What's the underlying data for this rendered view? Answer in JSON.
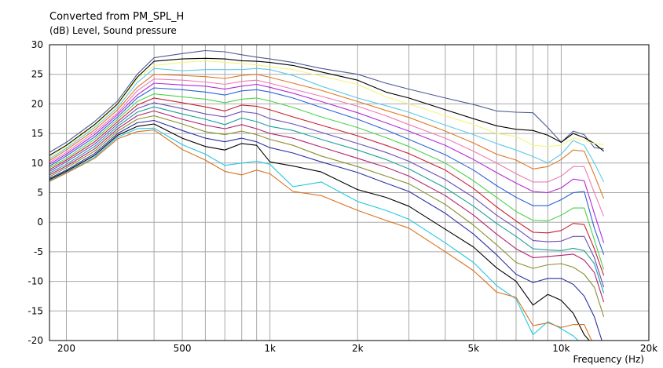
{
  "chart_data": {
    "type": "line",
    "title": "Converted from PM_SPL_H",
    "ylabel": "(dB)  Level, Sound pressure",
    "xlabel": "Frequency  (Hz)",
    "x_scale": "log",
    "xlim": [
      175,
      20000
    ],
    "ylim": [
      -20,
      30
    ],
    "grid": true,
    "x_ticks": [
      {
        "value": 200,
        "label": "200"
      },
      {
        "value": 500,
        "label": "500"
      },
      {
        "value": 1000,
        "label": "1k"
      },
      {
        "value": 2000,
        "label": "2k"
      },
      {
        "value": 5000,
        "label": "5k"
      },
      {
        "value": 10000,
        "label": "10k"
      },
      {
        "value": 20000,
        "label": "20k"
      }
    ],
    "y_ticks": [
      {
        "value": 30,
        "label": "30"
      },
      {
        "value": 25,
        "label": "25"
      },
      {
        "value": 20,
        "label": "20"
      },
      {
        "value": 15,
        "label": "15"
      },
      {
        "value": 10,
        "label": "10"
      },
      {
        "value": 5,
        "label": "5"
      },
      {
        "value": 0,
        "label": "0"
      },
      {
        "value": -5,
        "label": "-5"
      },
      {
        "value": -10,
        "label": "-10"
      },
      {
        "value": -15,
        "label": "-15"
      },
      {
        "value": -20,
        "label": "-20"
      }
    ],
    "x": [
      175,
      200,
      250,
      300,
      350,
      400,
      500,
      600,
      700,
      800,
      900,
      1000,
      1200,
      1500,
      2000,
      2500,
      3000,
      4000,
      5000,
      6000,
      7000,
      8000,
      9000,
      10000,
      11000,
      12000,
      13000,
      14000
    ],
    "series": [
      {
        "color": "#4f5b8f",
        "values": [
          11.8,
          13.5,
          17.0,
          20.5,
          25.0,
          27.8,
          28.5,
          29.0,
          28.8,
          28.3,
          27.9,
          27.6,
          27.0,
          26.0,
          25.0,
          23.5,
          22.5,
          21.0,
          19.9,
          18.8,
          18.6,
          18.5,
          16.0,
          13.5,
          15.4,
          14.8,
          12.6,
          12.4
        ]
      },
      {
        "color": "#000000",
        "values": [
          11.3,
          13.0,
          16.5,
          20.0,
          24.5,
          27.2,
          27.6,
          27.7,
          27.6,
          27.3,
          27.2,
          27.0,
          26.5,
          25.4,
          24.0,
          22.0,
          21.0,
          19.0,
          17.5,
          16.3,
          15.7,
          15.5,
          14.7,
          13.5,
          15.0,
          14.3,
          13.3,
          12.0
        ]
      },
      {
        "color": "#f5f57a",
        "values": [
          11.0,
          12.8,
          16.3,
          19.8,
          24.2,
          26.5,
          27.0,
          27.3,
          27.0,
          26.8,
          26.6,
          26.3,
          25.8,
          24.7,
          23.3,
          21.2,
          20.0,
          18.0,
          16.5,
          15.0,
          14.5,
          13.0,
          12.8,
          13.0,
          14.2,
          13.8,
          13.3,
          13.1
        ]
      },
      {
        "color": "#5cc9e8",
        "values": [
          10.7,
          12.5,
          16.0,
          19.4,
          23.6,
          26.0,
          25.6,
          25.8,
          25.8,
          25.8,
          26.0,
          25.8,
          24.8,
          23.0,
          21.0,
          19.7,
          18.6,
          16.4,
          14.8,
          13.3,
          12.2,
          11.1,
          10.0,
          11.5,
          13.8,
          13.0,
          10.0,
          6.8
        ]
      },
      {
        "color": "#e07828",
        "values": [
          10.4,
          12.2,
          15.6,
          19.0,
          22.8,
          25.0,
          24.8,
          24.6,
          24.3,
          24.8,
          25.0,
          24.5,
          23.5,
          22.3,
          20.4,
          18.9,
          17.7,
          15.4,
          13.4,
          11.5,
          10.5,
          9.0,
          9.4,
          10.6,
          12.2,
          12.0,
          8.0,
          4.0
        ]
      },
      {
        "color": "#f07ab4",
        "values": [
          10.1,
          11.8,
          15.2,
          18.5,
          22.2,
          24.2,
          24.0,
          23.7,
          23.3,
          23.8,
          24.0,
          23.5,
          22.5,
          21.3,
          19.6,
          18.0,
          16.5,
          14.2,
          12.0,
          10.0,
          8.2,
          6.8,
          6.8,
          7.8,
          9.4,
          9.4,
          5.0,
          1.0
        ]
      },
      {
        "color": "#b42ad8",
        "values": [
          9.8,
          11.5,
          14.8,
          18.2,
          21.5,
          23.5,
          23.2,
          23.0,
          22.5,
          23.0,
          23.3,
          22.8,
          21.8,
          20.4,
          18.5,
          16.8,
          15.4,
          13.0,
          10.6,
          8.4,
          6.6,
          5.2,
          5.0,
          5.8,
          7.3,
          7.0,
          1.5,
          -3.5
        ]
      },
      {
        "color": "#2a62d8",
        "values": [
          9.5,
          11.2,
          14.4,
          17.8,
          21.0,
          22.7,
          22.4,
          22.0,
          21.5,
          22.2,
          22.4,
          22.0,
          21.0,
          19.4,
          17.4,
          15.6,
          14.0,
          11.4,
          8.8,
          6.2,
          4.2,
          2.8,
          2.8,
          3.8,
          5.0,
          5.2,
          -1.0,
          -5.5
        ]
      },
      {
        "color": "#4cd24c",
        "values": [
          9.2,
          10.8,
          14.0,
          17.4,
          20.4,
          21.7,
          21.2,
          20.8,
          20.2,
          20.8,
          21.0,
          20.5,
          19.4,
          17.8,
          16.0,
          14.3,
          12.8,
          10.0,
          7.0,
          4.2,
          1.8,
          0.3,
          0.2,
          1.2,
          2.4,
          2.4,
          -3.0,
          -8.0
        ]
      },
      {
        "color": "#c81e32",
        "values": [
          8.9,
          10.5,
          13.6,
          17.0,
          19.8,
          21.0,
          20.2,
          19.5,
          18.8,
          19.8,
          19.6,
          19.0,
          17.8,
          16.4,
          14.6,
          13.0,
          11.6,
          8.8,
          5.7,
          2.6,
          0.2,
          -1.7,
          -1.8,
          -1.4,
          -0.2,
          -0.4,
          -4.5,
          -9.0
        ]
      },
      {
        "color": "#6a4cb8",
        "values": [
          8.6,
          10.2,
          13.2,
          16.6,
          19.2,
          20.2,
          19.2,
          18.3,
          17.8,
          18.7,
          18.4,
          17.5,
          16.6,
          15.2,
          13.3,
          11.8,
          10.3,
          7.2,
          4.2,
          1.2,
          -1.0,
          -3.1,
          -3.3,
          -3.2,
          -2.4,
          -2.4,
          -6.0,
          -11.0
        ]
      },
      {
        "color": "#1e9e9e",
        "values": [
          8.3,
          9.8,
          12.8,
          16.2,
          18.6,
          19.5,
          18.3,
          17.4,
          16.5,
          17.6,
          17.0,
          16.2,
          15.5,
          14.0,
          12.2,
          10.6,
          9.0,
          5.8,
          2.7,
          -0.2,
          -2.4,
          -4.5,
          -4.7,
          -4.8,
          -4.4,
          -4.8,
          -7.0,
          -12.0
        ]
      },
      {
        "color": "#b2226e",
        "values": [
          8.0,
          9.5,
          12.4,
          15.8,
          18.0,
          18.8,
          17.4,
          16.4,
          15.8,
          16.5,
          15.8,
          15.0,
          14.2,
          12.7,
          10.8,
          9.3,
          7.8,
          4.5,
          1.2,
          -2.0,
          -4.5,
          -6.0,
          -5.8,
          -5.6,
          -5.4,
          -6.4,
          -8.5,
          -13.5
        ]
      },
      {
        "color": "#8a8e2e",
        "values": [
          7.7,
          9.2,
          12.0,
          15.4,
          17.4,
          18.0,
          16.6,
          15.3,
          14.8,
          15.4,
          14.8,
          14.0,
          13.0,
          11.2,
          9.4,
          7.8,
          6.5,
          3.0,
          -0.5,
          -3.8,
          -6.8,
          -7.8,
          -7.2,
          -7.0,
          -7.6,
          -8.8,
          -11.0,
          -16.0
        ]
      },
      {
        "color": "#2a32a2",
        "values": [
          7.4,
          8.8,
          11.6,
          15.0,
          16.8,
          17.2,
          15.5,
          14.2,
          13.6,
          14.2,
          13.6,
          12.6,
          11.7,
          10.2,
          8.4,
          6.6,
          5.2,
          1.5,
          -2.0,
          -5.5,
          -8.8,
          -10.2,
          -9.5,
          -9.5,
          -10.5,
          -12.5,
          -16.0,
          -21.0
        ]
      },
      {
        "color": "#000000",
        "values": [
          7.2,
          8.6,
          11.3,
          14.7,
          16.2,
          16.6,
          14.2,
          12.8,
          12.2,
          13.3,
          13.0,
          10.2,
          9.5,
          8.5,
          5.5,
          4.2,
          2.7,
          -1.2,
          -4.2,
          -7.7,
          -10.0,
          -14.0,
          -12.2,
          -13.2,
          -15.4,
          -19.0,
          -21.0,
          -21.0
        ]
      },
      {
        "color": "#22c8e0",
        "values": [
          7.0,
          8.4,
          11.0,
          14.4,
          15.8,
          15.9,
          13.1,
          11.5,
          9.6,
          10.0,
          10.3,
          9.8,
          6.0,
          6.8,
          3.5,
          2.0,
          0.5,
          -3.5,
          -6.8,
          -10.7,
          -13.0,
          -19.0,
          -16.8,
          -18.0,
          -19.2,
          -21.0,
          -21.0,
          -21.0
        ]
      },
      {
        "color": "#d8701e",
        "values": [
          6.9,
          8.3,
          10.8,
          14.1,
          15.3,
          15.6,
          12.3,
          10.5,
          8.6,
          8.0,
          8.8,
          8.2,
          5.2,
          4.5,
          2.0,
          0.3,
          -1.0,
          -5.0,
          -8.2,
          -11.8,
          -12.7,
          -17.5,
          -17.0,
          -17.8,
          -17.3,
          -17.3,
          -21.0,
          -21.0
        ]
      }
    ]
  }
}
